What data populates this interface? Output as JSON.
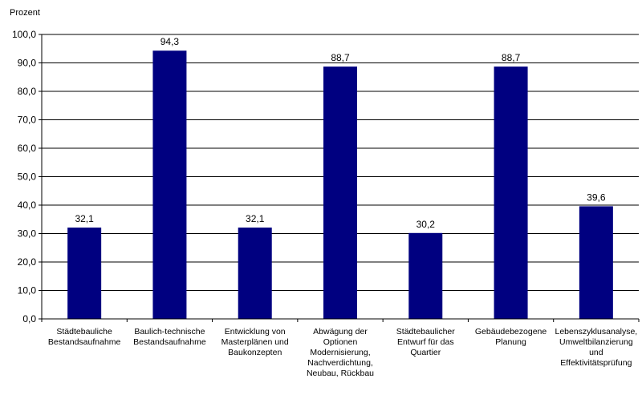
{
  "chart_data": {
    "type": "bar",
    "ylabel": "Prozent",
    "ylim": [
      0,
      100
    ],
    "ytick_step": 10,
    "ytick_labels": [
      "0,0",
      "10,0",
      "20,0",
      "30,0",
      "40,0",
      "50,0",
      "60,0",
      "70,0",
      "80,0",
      "90,0",
      "100,0"
    ],
    "grid": true,
    "legend": "none",
    "bar_color": "#000080",
    "categories": [
      [
        "Städtebauliche",
        "Bestandsaufnahme"
      ],
      [
        "Baulich-technische",
        "Bestandsaufnahme"
      ],
      [
        "Entwicklung von",
        "Masterplänen und",
        "Baukonzepten"
      ],
      [
        "Abwägung der",
        "Optionen",
        "Modernisierung,",
        "Nachverdichtung,",
        "Neubau, Rückbau"
      ],
      [
        "Städtebaulicher",
        "Entwurf für das",
        "Quartier"
      ],
      [
        "Gebäudebezogene",
        "Planung"
      ],
      [
        "Lebenszyklusanalyse,",
        "Umweltbilanzierung",
        "und",
        "Effektivitätsprüfung"
      ]
    ],
    "values": [
      32.1,
      94.3,
      32.1,
      88.7,
      30.2,
      88.7,
      39.6
    ],
    "value_labels": [
      "32,1",
      "94,3",
      "32,1",
      "88,7",
      "30,2",
      "88,7",
      "39,6"
    ]
  }
}
